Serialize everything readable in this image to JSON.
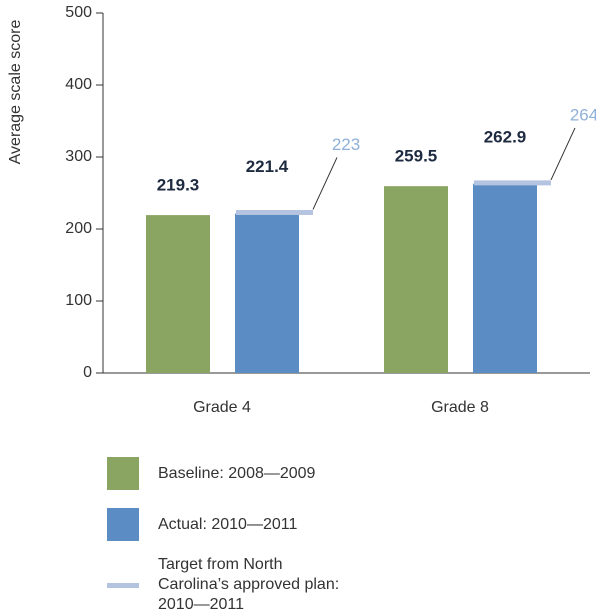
{
  "chart_data": {
    "type": "bar",
    "y_label": "Average scale score",
    "categories": [
      "Grade 4",
      "Grade 8"
    ],
    "series": [
      {
        "name": "Baseline: 2008—2009",
        "color": "#8aa562",
        "values": [
          219.3,
          259.5
        ]
      },
      {
        "name": "Actual: 2010—2011",
        "color": "#5b8cc3",
        "values": [
          221.4,
          262.9
        ]
      }
    ],
    "target": {
      "name": "Target from North Carolina’s approved plan: 2010—2011",
      "color": "#b4c3e0",
      "values": [
        223,
        264
      ]
    },
    "ylim": [
      0,
      500
    ],
    "yticks": [
      0,
      100,
      200,
      300,
      400,
      500
    ]
  }
}
